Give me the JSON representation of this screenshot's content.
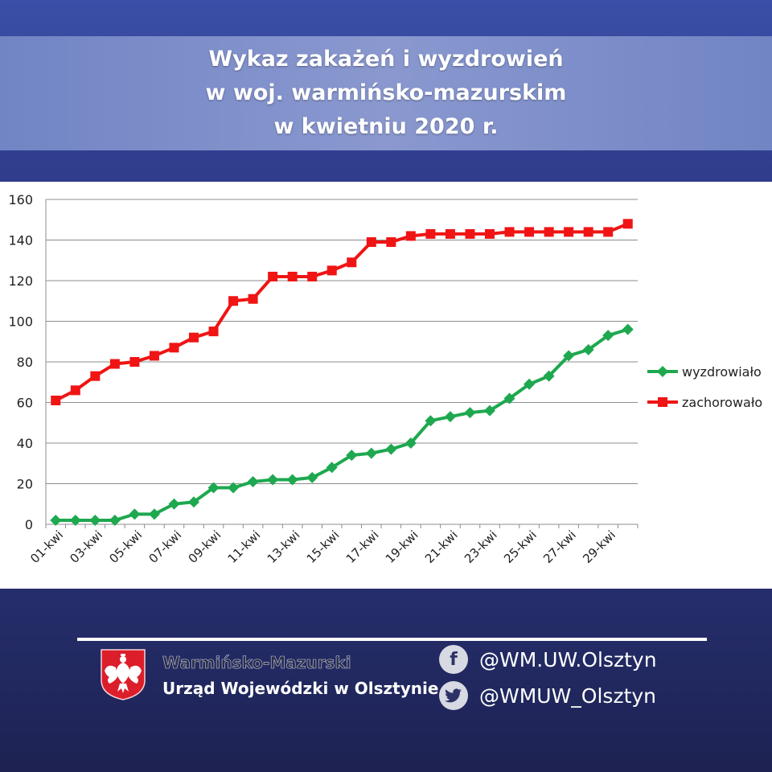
{
  "header": {
    "title_line1": "Wykaz zakażeń i wyzdrowień",
    "title_line2": "w woj. warmińsko-mazurskim",
    "title_line3": "w kwietniu 2020 r."
  },
  "chart_data": {
    "type": "line",
    "categories": [
      "01-kwi",
      "02-kwi",
      "03-kwi",
      "04-kwi",
      "05-kwi",
      "06-kwi",
      "07-kwi",
      "08-kwi",
      "09-kwi",
      "10-kwi",
      "11-kwi",
      "12-kwi",
      "13-kwi",
      "14-kwi",
      "15-kwi",
      "16-kwi",
      "17-kwi",
      "18-kwi",
      "19-kwi",
      "20-kwi",
      "21-kwi",
      "22-kwi",
      "23-kwi",
      "24-kwi",
      "25-kwi",
      "26-kwi",
      "27-kwi",
      "28-kwi",
      "29-kwi",
      "30-kwi"
    ],
    "x_tick_labels": [
      "01-kwi",
      "03-kwi",
      "05-kwi",
      "07-kwi",
      "09-kwi",
      "11-kwi",
      "13-kwi",
      "15-kwi",
      "17-kwi",
      "19-kwi",
      "21-kwi",
      "23-kwi",
      "25-kwi",
      "27-kwi",
      "29-kwi"
    ],
    "series": [
      {
        "name": "wyzdrowiało",
        "color": "#1ea84f",
        "marker": "diamond",
        "values": [
          2,
          2,
          2,
          2,
          5,
          5,
          10,
          11,
          18,
          18,
          21,
          22,
          22,
          23,
          28,
          34,
          35,
          37,
          40,
          51,
          53,
          55,
          56,
          62,
          69,
          73,
          83,
          86,
          93,
          96
        ]
      },
      {
        "name": "zachorowało",
        "color": "#f01414",
        "marker": "square",
        "values": [
          61,
          66,
          73,
          79,
          80,
          83,
          87,
          92,
          95,
          110,
          111,
          122,
          122,
          122,
          125,
          129,
          139,
          139,
          142,
          143,
          143,
          143,
          143,
          144,
          144,
          144,
          144,
          144,
          144,
          148
        ]
      }
    ],
    "ylim": [
      0,
      160
    ],
    "y_ticks": [
      0,
      20,
      40,
      60,
      80,
      100,
      120,
      140,
      160
    ],
    "grid": true,
    "legend_position": "right"
  },
  "footer": {
    "org_line1": "Warmińsko-Mazurski",
    "org_line2": "Urząd Wojewódzki w Olsztynie",
    "facebook_handle": "@WM.UW.Olsztyn",
    "twitter_handle": "@WMUW_Olsztyn"
  }
}
